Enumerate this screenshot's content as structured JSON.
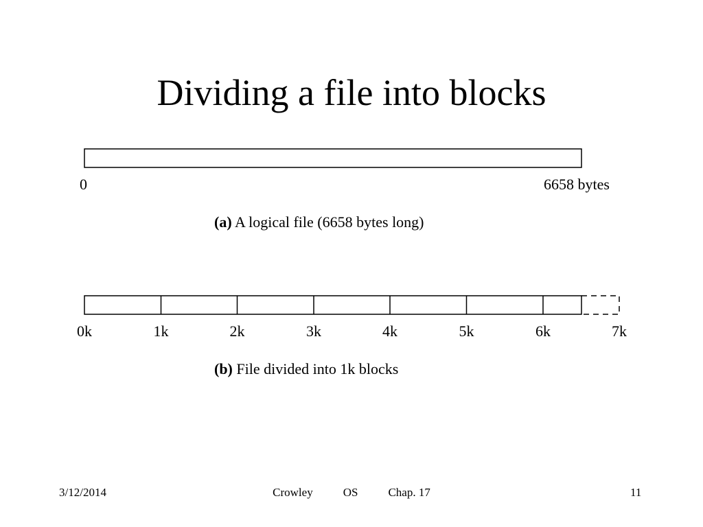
{
  "slide": {
    "title": "Dividing a file into blocks"
  },
  "diagram_a": {
    "start_label": "0",
    "end_label": "6658 bytes",
    "caption_tag": "(a)",
    "caption_text": " A logical file (6658 bytes long)",
    "file_size_bytes": 6658
  },
  "diagram_b": {
    "block_labels": [
      "0k",
      "1k",
      "2k",
      "3k",
      "4k",
      "5k",
      "6k",
      "7k"
    ],
    "caption_tag": "(b)",
    "caption_text": " File divided into 1k blocks",
    "block_size_bytes": 1024,
    "total_blocks": 7
  },
  "footer": {
    "date": "3/12/2014",
    "author": "Crowley",
    "course": "OS",
    "chapter": "Chap. 17",
    "page": "11"
  },
  "colors": {
    "line": "#000000",
    "background": "#ffffff"
  }
}
